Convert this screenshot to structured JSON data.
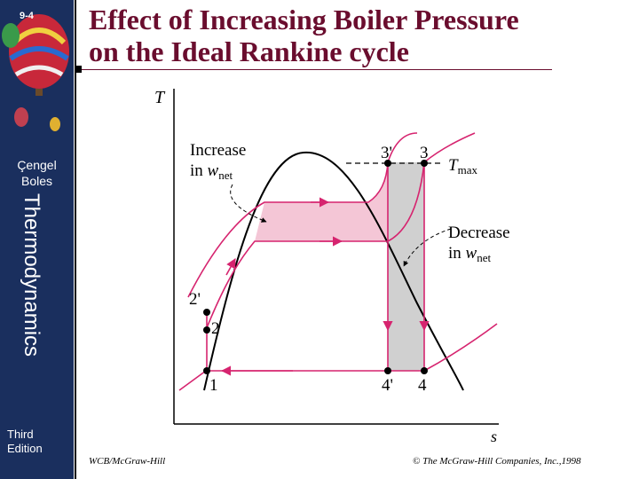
{
  "sidebar": {
    "slide_number": "9-4",
    "authors": [
      "Çengel",
      "Boles"
    ],
    "book_title": "Thermodynamics",
    "edition": [
      "Third",
      "Edition"
    ]
  },
  "title": {
    "line1": "Effect of Increasing Boiler Pressure",
    "line2": "on the Ideal Rankine cycle"
  },
  "diagram": {
    "y_axis_label": "T",
    "x_axis_label": "s",
    "increase_label": "Increase",
    "increase_in": "in",
    "decrease_label": "Decrease",
    "decrease_in": "in",
    "w_symbol": "w",
    "net_subscript": "net",
    "t_symbol": "T",
    "max_subscript": "max",
    "states": {
      "s3prime": "3'",
      "s3": "3",
      "s2prime": "2'",
      "s2": "2",
      "s1": "1",
      "s4prime": "4'",
      "s4": "4"
    },
    "colors": {
      "increase_area": "#f4c6d6",
      "decrease_area": "#d0d0d0",
      "process_line": "#d6246f"
    }
  },
  "footer": {
    "publisher_left": "WCB/McGraw-Hill",
    "copyright": "© The McGraw-Hill Companies, Inc.,1998"
  }
}
